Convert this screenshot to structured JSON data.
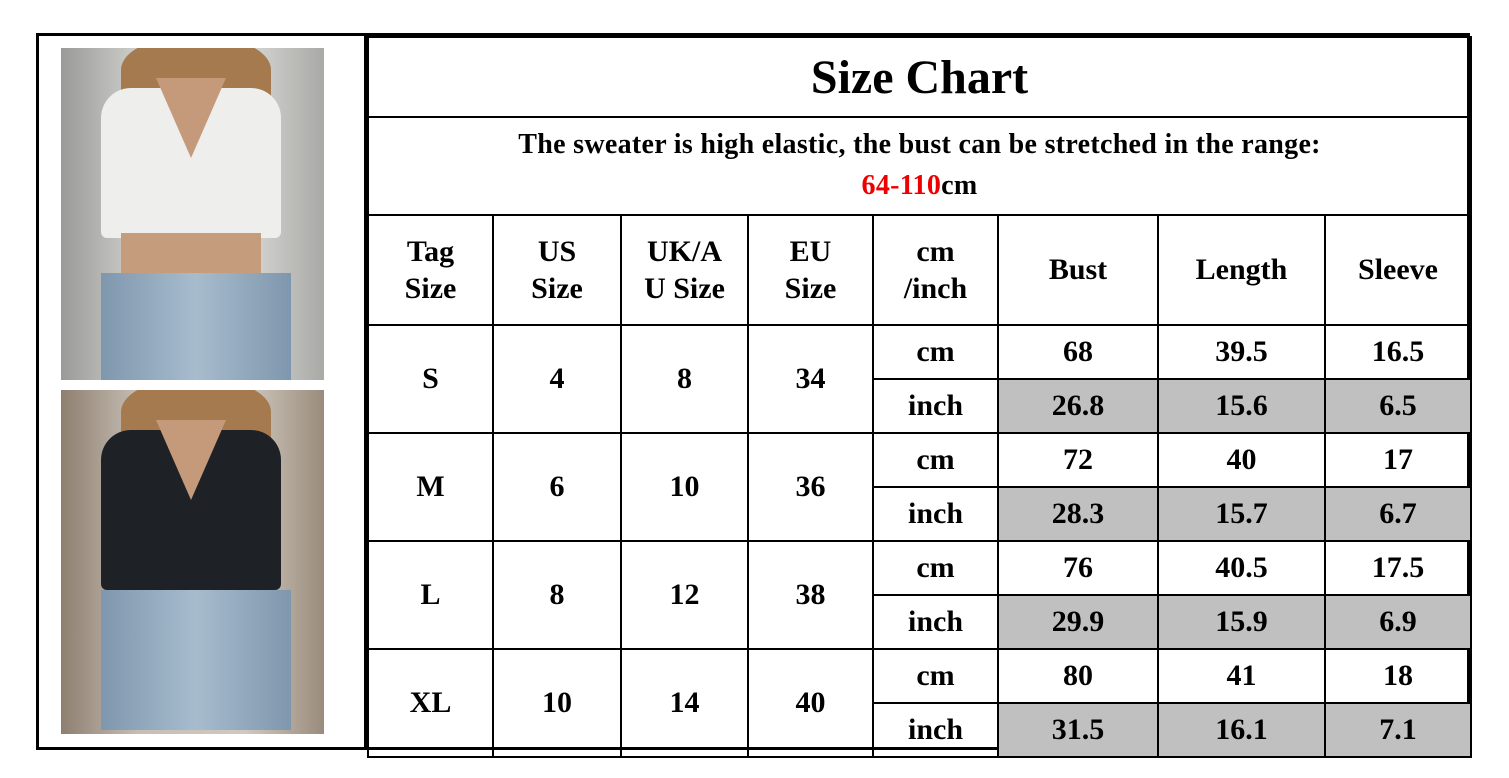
{
  "title": "Size Chart",
  "note_text": "The sweater is high elastic, the bust can be stretched in the range:",
  "note_range": "64-110",
  "note_unit": "cm",
  "headers": [
    "Tag\nSize",
    "US\nSize",
    "UK/A\nU Size",
    "EU\nSize",
    "cm\n/inch",
    "Bust",
    "Length",
    "Sleeve"
  ],
  "rows": [
    {
      "tag": "S",
      "us": "4",
      "uk": "8",
      "eu": "34",
      "cm": [
        "68",
        "39.5",
        "16.5"
      ],
      "inch": [
        "26.8",
        "15.6",
        "6.5"
      ]
    },
    {
      "tag": "M",
      "us": "6",
      "uk": "10",
      "eu": "36",
      "cm": [
        "72",
        "40",
        "17"
      ],
      "inch": [
        "28.3",
        "15.7",
        "6.7"
      ]
    },
    {
      "tag": "L",
      "us": "8",
      "uk": "12",
      "eu": "38",
      "cm": [
        "76",
        "40.5",
        "17.5"
      ],
      "inch": [
        "29.9",
        "15.9",
        "6.9"
      ]
    },
    {
      "tag": "XL",
      "us": "10",
      "uk": "14",
      "eu": "40",
      "cm": [
        "80",
        "41",
        "18"
      ],
      "inch": [
        "31.5",
        "16.1",
        "7.1"
      ]
    }
  ],
  "unit_cm": "cm",
  "unit_inch": "inch",
  "colors": {
    "range": "#e00000",
    "inch_bg": "#c0c0c0"
  }
}
